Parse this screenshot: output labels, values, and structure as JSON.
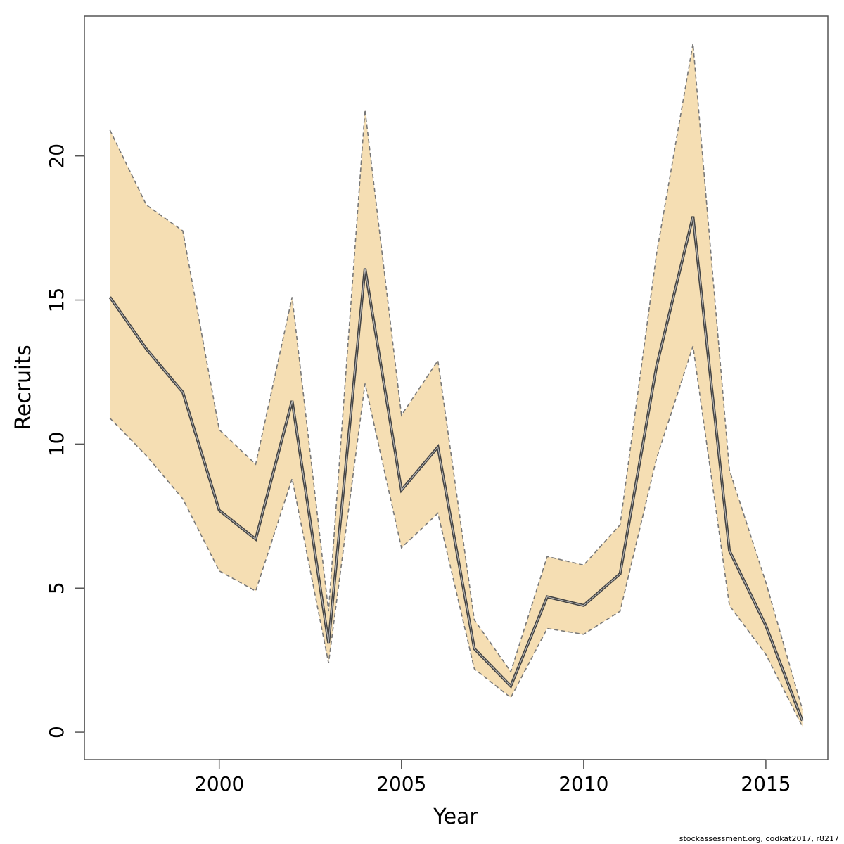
{
  "chart_data": {
    "type": "area",
    "title": "",
    "xlabel": "Year",
    "ylabel": "Recruits",
    "xlim": [
      1996.3,
      2016.7
    ],
    "ylim": [
      -0.95,
      24.85
    ],
    "x_ticks": [
      2000,
      2005,
      2010,
      2015
    ],
    "y_ticks": [
      0,
      5,
      10,
      15,
      20
    ],
    "grid": false,
    "legend": "none",
    "x": [
      1997,
      1998,
      1999,
      2000,
      2001,
      2002,
      2003,
      2004,
      2005,
      2006,
      2007,
      2008,
      2009,
      2010,
      2011,
      2012,
      2013,
      2014,
      2015,
      2016
    ],
    "series": [
      {
        "values": [
          15.1,
          13.3,
          11.8,
          7.7,
          6.7,
          11.5,
          3.1,
          16.1,
          8.4,
          9.9,
          2.9,
          1.6,
          4.7,
          4.4,
          5.5,
          12.7,
          17.9,
          6.3,
          3.7,
          0.4
        ]
      }
    ],
    "band": {
      "lower": [
        10.9,
        9.6,
        8.1,
        5.6,
        4.9,
        8.8,
        2.4,
        12.1,
        6.4,
        7.6,
        2.2,
        1.2,
        3.6,
        3.4,
        4.2,
        9.5,
        13.4,
        4.4,
        2.7,
        0.2
      ],
      "upper": [
        20.9,
        18.3,
        17.4,
        10.5,
        9.3,
        15.1,
        4.2,
        21.6,
        11.0,
        12.9,
        3.9,
        2.1,
        6.1,
        5.8,
        7.2,
        16.6,
        23.9,
        9.1,
        5.2,
        0.8
      ]
    },
    "colors": {
      "band_fill": "#f5deb3",
      "band_edge": "#777777",
      "line": "#444444",
      "frame": "#555555"
    },
    "credit": "stockassessment.org, codkat2017, r8217"
  }
}
